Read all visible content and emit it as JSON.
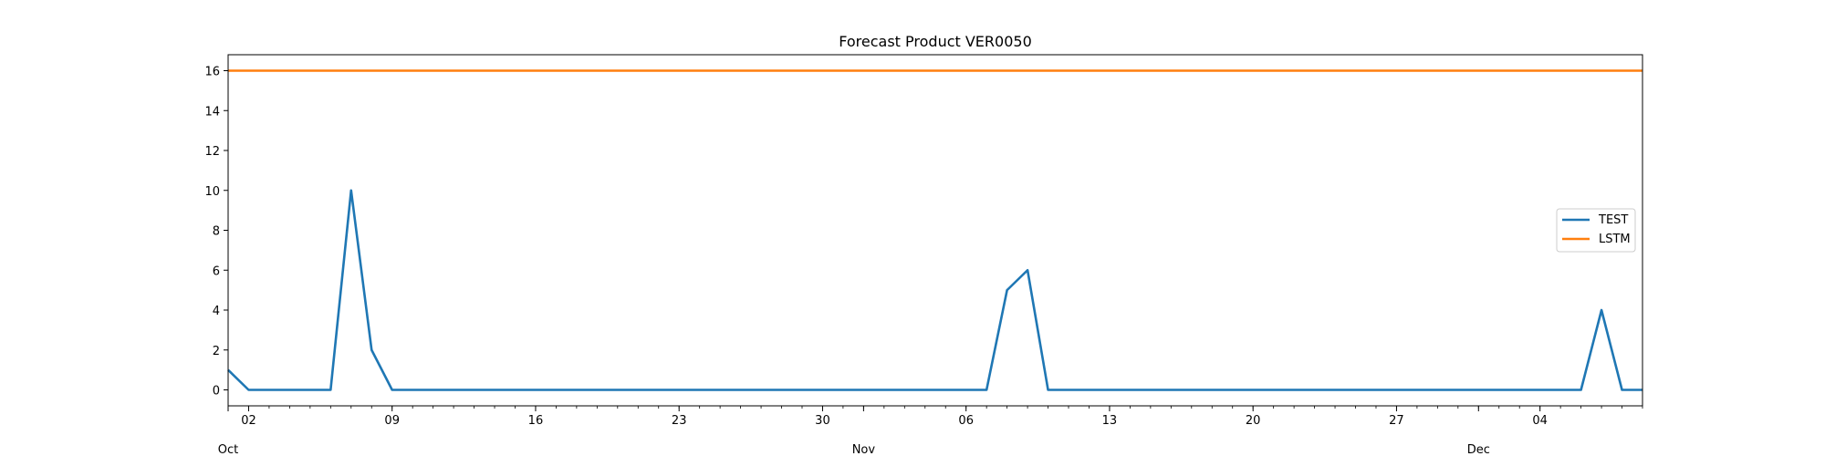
{
  "chart_data": {
    "type": "line",
    "title": "Forecast Product VER0050",
    "xlabel": "",
    "ylabel": "",
    "x_start": "2023-10-01",
    "x_end": "2023-12-09",
    "ylim": [
      -0.8,
      16.8
    ],
    "y_ticks": [
      0,
      2,
      4,
      6,
      8,
      10,
      12,
      14,
      16
    ],
    "x_major_ticks": [
      {
        "date": "2023-10-02",
        "label": "02"
      },
      {
        "date": "2023-10-09",
        "label": "09"
      },
      {
        "date": "2023-10-16",
        "label": "16"
      },
      {
        "date": "2023-10-23",
        "label": "23"
      },
      {
        "date": "2023-10-30",
        "label": "30"
      },
      {
        "date": "2023-11-06",
        "label": "06"
      },
      {
        "date": "2023-11-13",
        "label": "13"
      },
      {
        "date": "2023-11-20",
        "label": "20"
      },
      {
        "date": "2023-11-27",
        "label": "27"
      },
      {
        "date": "2023-12-04",
        "label": "04"
      }
    ],
    "x_month_labels": [
      {
        "date": "2023-10-01",
        "label": "Oct"
      },
      {
        "date": "2023-11-01",
        "label": "Nov"
      },
      {
        "date": "2023-12-01",
        "label": "Dec"
      }
    ],
    "legend_position": "center-right",
    "grid": false,
    "series": [
      {
        "name": "TEST",
        "color": "#1f77b4",
        "points": [
          [
            "2023-10-01",
            1
          ],
          [
            "2023-10-02",
            0
          ],
          [
            "2023-10-06",
            0
          ],
          [
            "2023-10-07",
            10
          ],
          [
            "2023-10-08",
            2
          ],
          [
            "2023-10-09",
            0
          ],
          [
            "2023-11-07",
            0
          ],
          [
            "2023-11-08",
            5
          ],
          [
            "2023-11-09",
            6
          ],
          [
            "2023-11-10",
            0
          ],
          [
            "2023-12-06",
            0
          ],
          [
            "2023-12-07",
            4
          ],
          [
            "2023-12-08",
            0
          ],
          [
            "2023-12-09",
            0
          ]
        ]
      },
      {
        "name": "LSTM",
        "color": "#ff7f0e",
        "points": [
          [
            "2023-10-01",
            16
          ],
          [
            "2023-12-09",
            16
          ]
        ]
      }
    ]
  }
}
